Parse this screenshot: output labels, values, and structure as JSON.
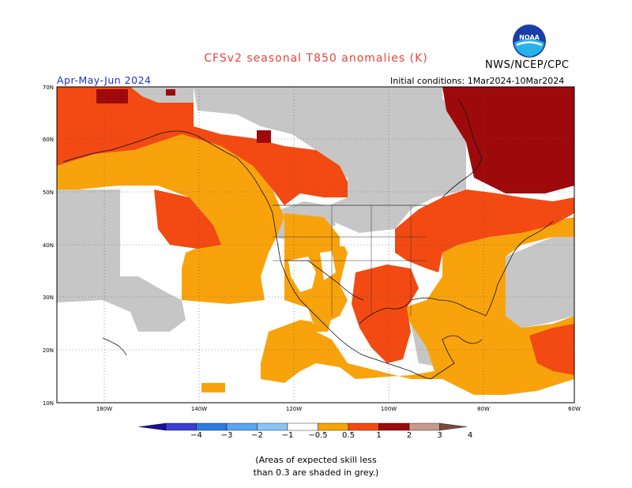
{
  "title": "CFSv2 seasonal T850 anomalies (K)",
  "agency": "NWS/NCEP/CPC",
  "logo_text": "NOAA",
  "period": "Apr-May-Jun 2024",
  "initial_conditions": "Initial conditions: 1Mar2024-10Mar2024",
  "lat_labels": [
    "70N",
    "60N",
    "50N",
    "40N",
    "30N",
    "20N",
    "10N"
  ],
  "lon_labels": [
    "180W",
    "140W",
    "120W",
    "100W",
    "80W",
    "60W"
  ],
  "colorbar": {
    "labels": [
      "−4",
      "−3",
      "−2",
      "−1",
      "−0.5",
      "0.5",
      "1",
      "2",
      "3",
      "4"
    ],
    "colors": [
      "#1c0e9e",
      "#3b3fd6",
      "#2e7ae0",
      "#5aa6ee",
      "#8cc4f4",
      "#ffffff",
      "#f8a30c",
      "#f24a12",
      "#9e0a0c",
      "#c89a8e",
      "#7a4a40"
    ]
  },
  "legend_colors": {
    "grey": "#c6c6c6",
    "light_orange": "#f8a30c",
    "orange_red": "#f24a12",
    "dark_red": "#9e0a0c",
    "white": "#ffffff"
  },
  "note_line1": "(Areas of expected skill less",
  "note_line2": "than 0.3 are shaded in grey.)"
}
